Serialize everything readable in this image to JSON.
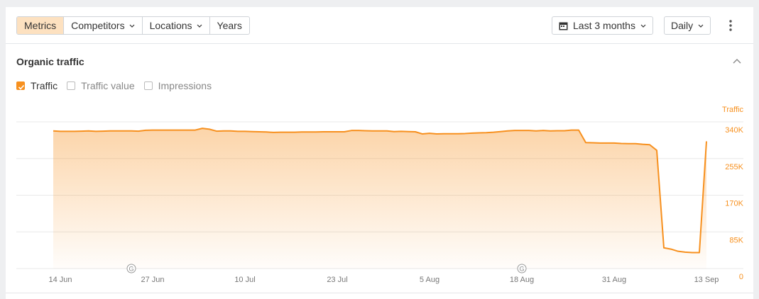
{
  "toolbar": {
    "tabs": [
      "Metrics",
      "Competitors",
      "Locations",
      "Years"
    ],
    "period": "Last 3 months",
    "interval": "Daily"
  },
  "section_title": "Organic traffic",
  "checkboxes": [
    {
      "label": "Traffic",
      "checked": true
    },
    {
      "label": "Traffic value",
      "checked": false
    },
    {
      "label": "Impressions",
      "checked": false
    }
  ],
  "chart_data": {
    "type": "area",
    "y_label": "Traffic",
    "color": "#f7901e",
    "categories": [
      null,
      "14 Jun",
      null,
      null,
      null,
      null,
      null,
      null,
      null,
      null,
      null,
      null,
      null,
      null,
      "27 Jun",
      null,
      null,
      null,
      null,
      null,
      null,
      null,
      null,
      null,
      null,
      null,
      null,
      "10 Jul",
      null,
      null,
      null,
      null,
      null,
      null,
      null,
      null,
      null,
      null,
      null,
      null,
      "23 Jul",
      null,
      null,
      null,
      null,
      null,
      null,
      null,
      null,
      null,
      null,
      null,
      null,
      "5 Aug",
      null,
      null,
      null,
      null,
      null,
      null,
      null,
      null,
      null,
      null,
      null,
      null,
      "18 Aug",
      null,
      null,
      null,
      null,
      null,
      null,
      null,
      null,
      null,
      null,
      null,
      null,
      "31 Aug",
      null,
      null,
      null,
      null,
      null,
      null,
      null,
      null,
      null,
      null,
      null,
      null,
      "13 Sep"
    ],
    "values": [
      319000,
      318000,
      318000,
      318000,
      318500,
      319000,
      318000,
      318500,
      319000,
      319000,
      319000,
      319000,
      318500,
      320500,
      321000,
      321000,
      321000,
      321000,
      321000,
      321000,
      321000,
      325000,
      323000,
      318500,
      319000,
      319000,
      318000,
      318000,
      317500,
      317000,
      316500,
      315500,
      316000,
      316000,
      316000,
      316500,
      316500,
      316500,
      317000,
      317000,
      317000,
      317000,
      320000,
      320000,
      319500,
      319000,
      319000,
      319000,
      317500,
      318000,
      317500,
      317000,
      312000,
      313500,
      312000,
      312500,
      312500,
      312500,
      313000,
      314000,
      314500,
      315000,
      316000,
      317500,
      319000,
      320000,
      320000,
      320000,
      319000,
      320000,
      319000,
      319500,
      319500,
      321000,
      321000,
      292000,
      291500,
      291000,
      291000,
      291000,
      290000,
      289500,
      289500,
      288000,
      287000,
      274000,
      48000,
      45000,
      40000,
      38000,
      37000,
      37000,
      295000
    ],
    "ylim": [
      0,
      340000
    ],
    "yticks": [
      0,
      {
        "value": 85000,
        "label": "85K"
      },
      {
        "value": 170000,
        "label": "170K"
      },
      {
        "value": 255000,
        "label": "255K"
      },
      {
        "value": 340000,
        "label": "340K"
      }
    ],
    "grid": true,
    "annotations": [
      {
        "text": "G",
        "at": 11
      },
      {
        "text": "G",
        "at": 66
      }
    ]
  }
}
